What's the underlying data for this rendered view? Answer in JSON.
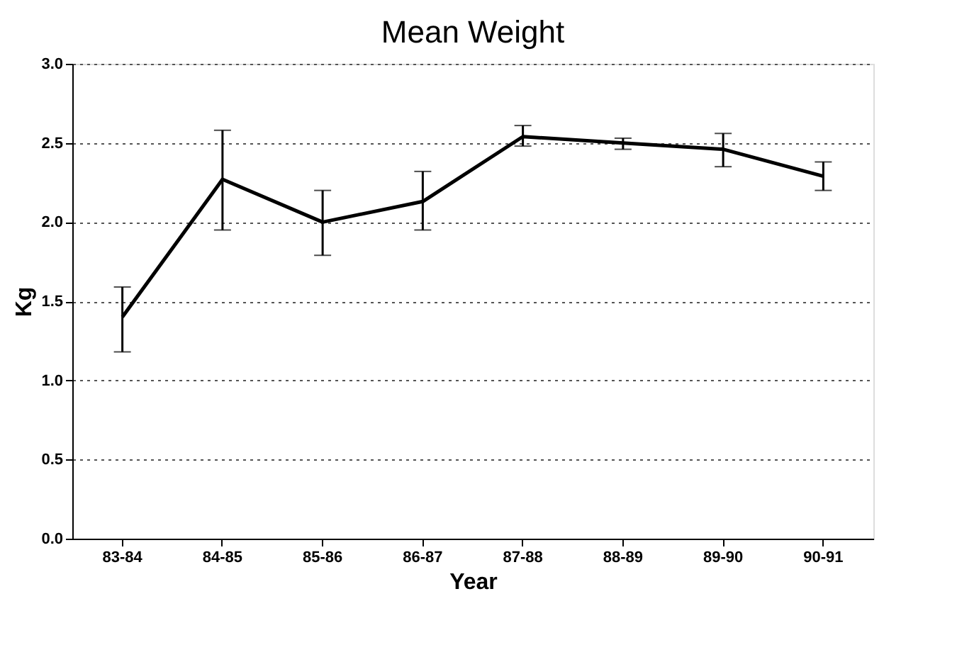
{
  "chart_data": {
    "type": "line",
    "title": "Mean Weight",
    "xlabel": "Year",
    "ylabel": "Kg",
    "categories": [
      "83-84",
      "84-85",
      "85-86",
      "86-87",
      "87-88",
      "88-89",
      "89-90",
      "90-91"
    ],
    "series": [
      {
        "color": "#000000",
        "values": [
          1.4,
          2.27,
          2.0,
          2.13,
          2.54,
          2.5,
          2.46,
          2.29
        ],
        "errors": [
          [
            1.18,
            1.59
          ],
          [
            1.95,
            2.58
          ],
          [
            1.79,
            2.2
          ],
          [
            1.95,
            2.32
          ],
          [
            2.48,
            2.61
          ],
          [
            2.46,
            2.53
          ],
          [
            2.35,
            2.56
          ],
          [
            2.2,
            2.38
          ]
        ]
      }
    ],
    "ylim": [
      0,
      3
    ],
    "yticks": [
      {
        "value": 0,
        "label": "0.0"
      },
      {
        "value": 0.5,
        "label": "0.5"
      },
      {
        "value": 1,
        "label": "1.0"
      },
      {
        "value": 1.5,
        "label": "1.5"
      },
      {
        "value": 2,
        "label": "2.0"
      },
      {
        "value": 2.5,
        "label": "2.5"
      },
      {
        "value": 3,
        "label": "3.0"
      }
    ],
    "grid": "y",
    "marker": "none",
    "line_style": "solid"
  }
}
